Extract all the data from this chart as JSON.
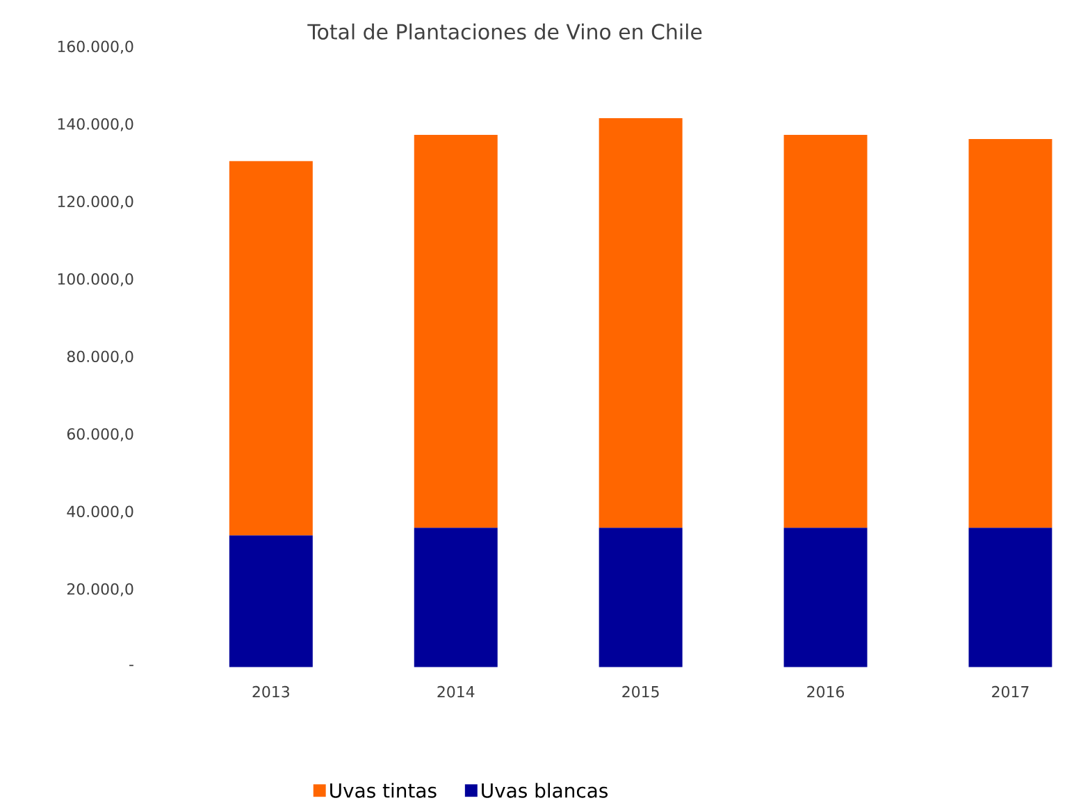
{
  "chart_data": {
    "type": "bar",
    "title": "Total de Plantaciones de Vino en Chile",
    "stacked": true,
    "categories": [
      "2013",
      "2014",
      "2015",
      "2016",
      "2017"
    ],
    "series": [
      {
        "name": "Uvas blancas",
        "color": "#000099",
        "values": [
          34000,
          36000,
          36000,
          36000,
          36000
        ]
      },
      {
        "name": "Uvas tintas",
        "color": "#ff6600",
        "values": [
          96600,
          101400,
          105700,
          101400,
          100300
        ]
      }
    ],
    "ylim": [
      0,
      160000
    ],
    "yticks": [
      {
        "value": 0,
        "label": "-"
      },
      {
        "value": 20000,
        "label": "20.000,0"
      },
      {
        "value": 40000,
        "label": "40.000,0"
      },
      {
        "value": 60000,
        "label": "60.000,0"
      },
      {
        "value": 80000,
        "label": "80.000,0"
      },
      {
        "value": 100000,
        "label": "100.000,0"
      },
      {
        "value": 120000,
        "label": "120.000,0"
      },
      {
        "value": 140000,
        "label": "140.000,0"
      },
      {
        "value": 160000,
        "label": "160.000,0"
      }
    ],
    "grid": false,
    "legend": "bottom"
  }
}
